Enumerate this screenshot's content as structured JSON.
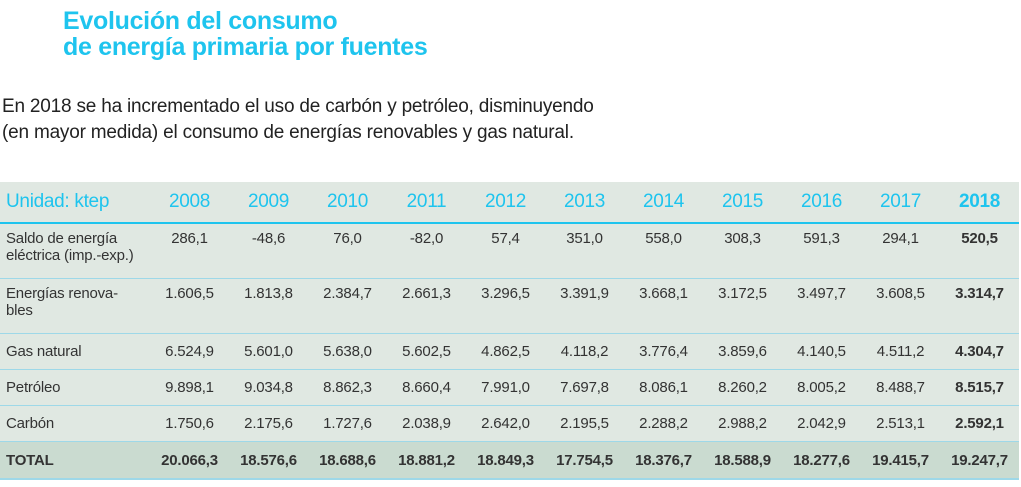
{
  "header": {
    "title_line1": "Evolución del consumo",
    "title_line2": "de energía primaria por fuentes",
    "subtitle_line1": "En 2018 se ha incrementado el uso de carbón y petróleo, disminuyendo",
    "subtitle_line2": "(en mayor medida) el consumo de energías renovables y gas natural."
  },
  "colors": {
    "accent": "#1ec4ee",
    "table_bg": "#e0e8e2",
    "total_bg": "#cadbd0",
    "row_border": "#9ed8e8",
    "text": "#333333"
  },
  "table": {
    "unit_label": "Unidad: ktep",
    "years": [
      "2008",
      "2009",
      "2010",
      "2011",
      "2012",
      "2013",
      "2014",
      "2015",
      "2016",
      "2017",
      "2018"
    ],
    "rows": [
      {
        "label_line1": "Saldo de energía",
        "label_line2": "eléctrica (imp.-exp.)",
        "values": [
          "286,1",
          "-48,6",
          "76,0",
          "-82,0",
          "57,4",
          "351,0",
          "558,0",
          "308,3",
          "591,3",
          "294,1",
          "520,5"
        ]
      },
      {
        "label_line1": "Energías renova-",
        "label_line2": "bles",
        "values": [
          "1.606,5",
          "1.813,8",
          "2.384,7",
          "2.661,3",
          "3.296,5",
          "3.391,9",
          "3.668,1",
          "3.172,5",
          "3.497,7",
          "3.608,5",
          "3.314,7"
        ]
      },
      {
        "label_line1": "Gas natural",
        "values": [
          "6.524,9",
          "5.601,0",
          "5.638,0",
          "5.602,5",
          "4.862,5",
          "4.118,2",
          "3.776,4",
          "3.859,6",
          "4.140,5",
          "4.511,2",
          "4.304,7"
        ]
      },
      {
        "label_line1": "Petróleo",
        "values": [
          "9.898,1",
          "9.034,8",
          "8.862,3",
          "8.660,4",
          "7.991,0",
          "7.697,8",
          "8.086,1",
          "8.260,2",
          "8.005,2",
          "8.488,7",
          "8.515,7"
        ]
      },
      {
        "label_line1": "Carbón",
        "values": [
          "1.750,6",
          "2.175,6",
          "1.727,6",
          "2.038,9",
          "2.642,0",
          "2.195,5",
          "2.288,2",
          "2.988,2",
          "2.042,9",
          "2.513,1",
          "2.592,1"
        ]
      }
    ],
    "total": {
      "label": "TOTAL",
      "values": [
        "20.066,3",
        "18.576,6",
        "18.688,6",
        "18.881,2",
        "18.849,3",
        "17.754,5",
        "18.376,7",
        "18.588,9",
        "18.277,6",
        "19.415,7",
        "19.247,7"
      ]
    }
  }
}
